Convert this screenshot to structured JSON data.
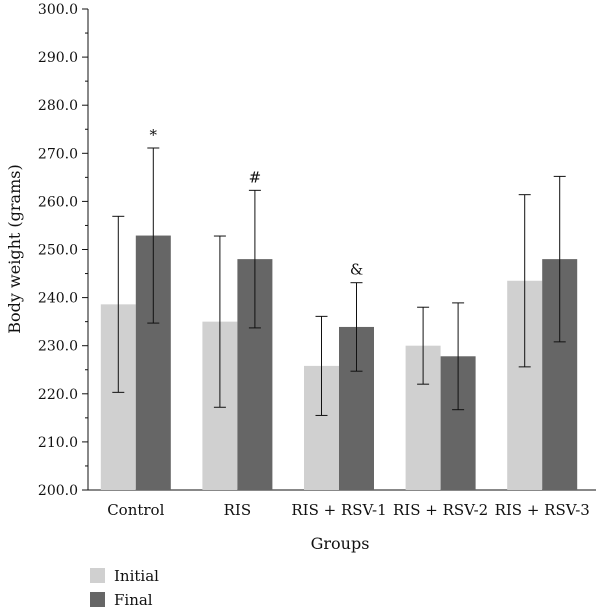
{
  "chart_data": {
    "type": "bar",
    "title": "",
    "xlabel": "Groups",
    "ylabel": "Body weight (grams)",
    "ylim": [
      200,
      300
    ],
    "yticks": [
      "200.0",
      "210.0",
      "220.0",
      "230.0",
      "240.0",
      "250.0",
      "260.0",
      "270.0",
      "280.0",
      "290.0",
      "300.0"
    ],
    "categories": [
      "Control",
      "RIS",
      "RIS + RSV-1",
      "RIS + RSV-2",
      "RIS + RSV-3"
    ],
    "series": [
      {
        "name": "Initial",
        "color": "#d0d0d0",
        "values": [
          238.6,
          235.0,
          225.8,
          230.0,
          243.5
        ],
        "error": [
          18.3,
          17.8,
          10.3,
          8.0,
          17.9
        ]
      },
      {
        "name": "Final",
        "color": "#666666",
        "values": [
          252.9,
          248.0,
          233.9,
          227.8,
          248.0
        ],
        "error": [
          18.2,
          14.3,
          9.2,
          11.1,
          17.2
        ]
      }
    ],
    "annotations": [
      {
        "category": "Control",
        "series": "Final",
        "text": "*"
      },
      {
        "category": "RIS",
        "series": "Final",
        "text": "#"
      },
      {
        "category": "RIS + RSV-1",
        "series": "Final",
        "text": "&"
      }
    ],
    "legend_position": "bottom-left",
    "grid": false
  }
}
